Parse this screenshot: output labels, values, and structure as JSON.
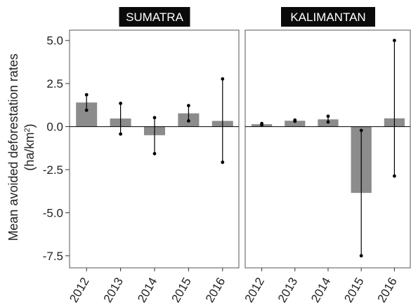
{
  "chart_data": {
    "type": "bar",
    "ylabel_line1": "Mean avoided deforestation rates",
    "ylabel_line2_prefix": "(ha/km",
    "ylabel_line2_sup": "2",
    "ylabel_line2_suffix": ")",
    "ylim": [
      -8.2,
      5.6
    ],
    "yticks": [
      5.0,
      2.5,
      0.0,
      -2.5,
      -5.0,
      -7.5
    ],
    "ytick_labels": [
      "5.0",
      "2.5",
      "0.0",
      "-2.5",
      "-5.0",
      "-7.5"
    ],
    "categories": [
      "2012",
      "2013",
      "2014",
      "2015",
      "2016"
    ],
    "bar_color": "#8c8c8c",
    "strip_color": "#0a0a0a",
    "panels": [
      {
        "name": "SUMATRA",
        "values": [
          1.4,
          0.47,
          -0.5,
          0.77,
          0.33
        ],
        "ci_low": [
          0.95,
          -0.43,
          -1.57,
          0.33,
          -2.07
        ],
        "ci_high": [
          1.85,
          1.35,
          0.52,
          1.22,
          2.77
        ]
      },
      {
        "name": "KALIMANTAN",
        "values": [
          0.14,
          0.34,
          0.42,
          -3.85,
          0.48
        ],
        "ci_low": [
          0.09,
          0.31,
          0.27,
          -7.5,
          -2.87
        ],
        "ci_high": [
          0.18,
          0.38,
          0.6,
          -0.22,
          5.0
        ]
      }
    ]
  }
}
